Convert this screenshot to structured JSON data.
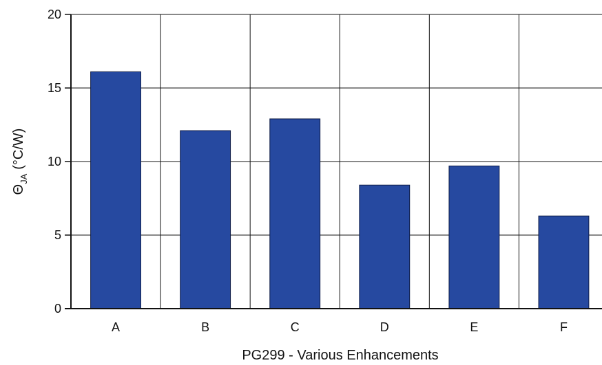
{
  "chart_data": {
    "type": "bar",
    "categories": [
      "A",
      "B",
      "C",
      "D",
      "E",
      "F"
    ],
    "values": [
      16.1,
      12.1,
      12.9,
      8.4,
      9.7,
      6.3
    ],
    "title": "",
    "xlabel": "PG299 - Various Enhancements",
    "ylabel_symbol": "Θ",
    "ylabel_subscript": "JA",
    "ylabel_unit": "(°C/W)",
    "ylim": [
      0,
      20
    ],
    "yticks": [
      "0",
      "5",
      "10",
      "15",
      "20"
    ],
    "grid": true,
    "bar_color": "#2649a0",
    "bar_stroke": "#0d1b45"
  }
}
